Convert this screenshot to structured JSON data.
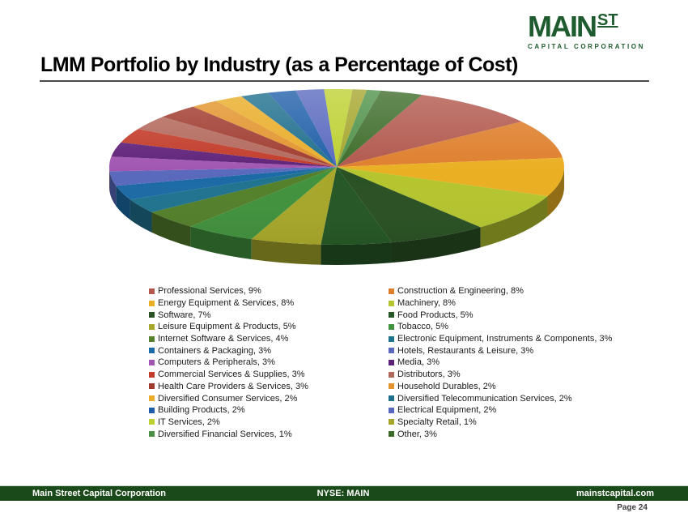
{
  "logo": {
    "main": "MAIN",
    "st": "ST",
    "subtitle": "CAPITAL CORPORATION",
    "color": "#1E5B2E"
  },
  "title": "LMM Portfolio by Industry (as a Percentage of Cost)",
  "footer": {
    "left": "Main Street Capital Corporation",
    "center": "NYSE: MAIN",
    "right": "mainstcapital.com",
    "page_label": "Page 24",
    "bar_color": "#1A4A1A"
  },
  "chart_data": {
    "type": "pie",
    "three_d": true,
    "start_angle_deg": 22,
    "legend_position": "bottom, two columns, row-major order",
    "title": "LMM Portfolio by Industry (as a Percentage of Cost)",
    "items": [
      {
        "label": "Professional Services",
        "value": 9,
        "color": "#B1574C"
      },
      {
        "label": "Construction & Engineering",
        "value": 8,
        "color": "#DE7E2B"
      },
      {
        "label": "Energy Equipment & Services",
        "value": 8,
        "color": "#EAAF22"
      },
      {
        "label": "Machinery",
        "value": 8,
        "color": "#B5C52F"
      },
      {
        "label": "Software",
        "value": 7,
        "color": "#2A5124"
      },
      {
        "label": "Food Products",
        "value": 5,
        "color": "#265726"
      },
      {
        "label": "Leisure Equipment & Products",
        "value": 5,
        "color": "#A8A72B"
      },
      {
        "label": "Tobacco",
        "value": 5,
        "color": "#41923E"
      },
      {
        "label": "Internet Software & Services",
        "value": 4,
        "color": "#54802B"
      },
      {
        "label": "Electronic Equipment, Instruments & Components",
        "value": 3,
        "color": "#20738F"
      },
      {
        "label": "Containers & Packaging",
        "value": 3,
        "color": "#1C6AA6"
      },
      {
        "label": "Hotels, Restaurants & Leisure",
        "value": 3,
        "color": "#5A69BC"
      },
      {
        "label": "Computers & Peripherals",
        "value": 3,
        "color": "#A055B0"
      },
      {
        "label": "Media",
        "value": 3,
        "color": "#5E2178"
      },
      {
        "label": "Commercial Services & Supplies",
        "value": 3,
        "color": "#C23A28"
      },
      {
        "label": "Distributors",
        "value": 3,
        "color": "#B2675B"
      },
      {
        "label": "Health Care Providers & Services",
        "value": 3,
        "color": "#A03A2E"
      },
      {
        "label": "Household Durables",
        "value": 2,
        "color": "#E2932B"
      },
      {
        "label": "Diversified Consumer Services",
        "value": 2,
        "color": "#E9AC26"
      },
      {
        "label": "Diversified Telecommunication Services",
        "value": 2,
        "color": "#1E6E8C"
      },
      {
        "label": "Building Products",
        "value": 2,
        "color": "#1E5EA8"
      },
      {
        "label": "Electrical Equipment",
        "value": 2,
        "color": "#5868BE"
      },
      {
        "label": "IT Services",
        "value": 2,
        "color": "#BDD02F"
      },
      {
        "label": "Specialty Retail",
        "value": 1,
        "color": "#A5A52C"
      },
      {
        "label": "Diversified Financial Services",
        "value": 1,
        "color": "#4D9147"
      },
      {
        "label": "Other",
        "value": 3,
        "color": "#3C6B28"
      }
    ]
  }
}
